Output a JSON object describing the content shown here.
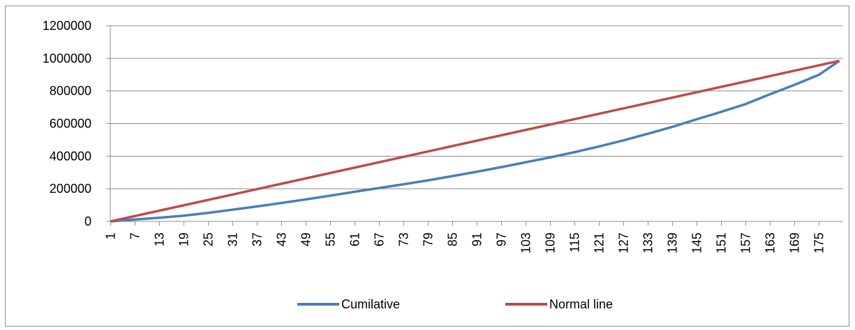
{
  "chart_data": {
    "type": "line",
    "title": "",
    "xlabel": "",
    "ylabel": "",
    "x_count": 180,
    "x_tick_labels": [
      "1",
      "7",
      "13",
      "19",
      "25",
      "31",
      "37",
      "43",
      "49",
      "55",
      "61",
      "67",
      "73",
      "79",
      "85",
      "91",
      "97",
      "103",
      "109",
      "115",
      "121",
      "127",
      "133",
      "139",
      "145",
      "151",
      "157",
      "163",
      "169",
      "175"
    ],
    "ylim": [
      0,
      1200000
    ],
    "y_ticks": [
      "0",
      "200000",
      "400000",
      "600000",
      "800000",
      "1000000",
      "1200000"
    ],
    "grid": "horizontal",
    "legend_position": "bottom",
    "series": [
      {
        "name": "Cumilative",
        "color": "#4a7ebb",
        "points": [
          [
            1,
            0
          ],
          [
            7,
            12000
          ],
          [
            13,
            22000
          ],
          [
            19,
            35000
          ],
          [
            25,
            52000
          ],
          [
            31,
            72000
          ],
          [
            37,
            92000
          ],
          [
            43,
            113000
          ],
          [
            49,
            135000
          ],
          [
            55,
            158000
          ],
          [
            61,
            182000
          ],
          [
            67,
            205000
          ],
          [
            73,
            228000
          ],
          [
            79,
            252000
          ],
          [
            85,
            278000
          ],
          [
            91,
            305000
          ],
          [
            97,
            333000
          ],
          [
            103,
            363000
          ],
          [
            109,
            393000
          ],
          [
            115,
            425000
          ],
          [
            121,
            460000
          ],
          [
            127,
            497000
          ],
          [
            133,
            538000
          ],
          [
            139,
            580000
          ],
          [
            145,
            627000
          ],
          [
            151,
            672000
          ],
          [
            157,
            720000
          ],
          [
            163,
            780000
          ],
          [
            169,
            838000
          ],
          [
            175,
            900000
          ],
          [
            180,
            985000
          ]
        ]
      },
      {
        "name": "Normal line",
        "color": "#be4b48",
        "points": [
          [
            1,
            0
          ],
          [
            180,
            985000
          ]
        ]
      }
    ]
  }
}
